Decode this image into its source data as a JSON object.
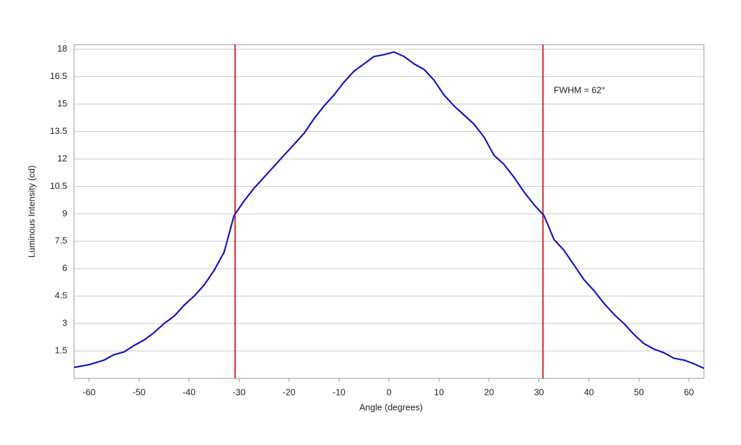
{
  "chart_data": {
    "type": "line",
    "xlabel": "Angle (degrees)",
    "ylabel": "Luminous Intensity (cd)",
    "annotation": "FWHM = 62°",
    "x": [
      -63,
      -60,
      -57,
      -55,
      -53,
      -51,
      -49,
      -47,
      -45,
      -43,
      -41,
      -39,
      -37,
      -35,
      -33,
      -31,
      -29,
      -27,
      -25,
      -23,
      -21,
      -19,
      -17,
      -15,
      -13,
      -11,
      -9,
      -7,
      -5,
      -3,
      -1,
      1,
      3,
      5,
      7,
      9,
      11,
      13,
      15,
      17,
      19,
      21,
      23,
      25,
      27,
      29,
      31,
      33,
      35,
      37,
      39,
      41,
      43,
      45,
      47,
      49,
      51,
      53,
      55,
      57,
      59,
      61,
      63
    ],
    "series": [
      {
        "color": "#1010c8",
        "values": [
          0.6,
          0.75,
          1.0,
          1.3,
          1.45,
          1.8,
          2.1,
          2.5,
          3.0,
          3.4,
          4.0,
          4.5,
          5.1,
          5.9,
          6.9,
          8.9,
          9.7,
          10.4,
          11.0,
          11.6,
          12.2,
          12.8,
          13.4,
          14.2,
          14.9,
          15.5,
          16.2,
          16.8,
          17.2,
          17.6,
          17.7,
          17.85,
          17.6,
          17.2,
          16.9,
          16.3,
          15.5,
          14.9,
          14.4,
          13.9,
          13.2,
          12.2,
          11.7,
          11.0,
          10.2,
          9.5,
          8.9,
          7.6,
          7.0,
          6.2,
          5.4,
          4.8,
          4.1,
          3.5,
          3.0,
          2.4,
          1.9,
          1.6,
          1.4,
          1.1,
          1.0,
          0.8,
          0.55
        ]
      }
    ],
    "vlines": [
      -30.8,
      30.8
    ],
    "vline_color": "#d42020",
    "xlim": [
      -63,
      63
    ],
    "xticks": [
      -60,
      -50,
      -40,
      -30,
      -20,
      -10,
      0,
      10,
      20,
      30,
      40,
      50,
      60
    ],
    "ylim": [
      0,
      18.25
    ],
    "yticks": [
      1.5,
      3,
      4.5,
      6,
      7.5,
      9,
      10.5,
      12,
      13.5,
      15,
      16.5,
      18
    ],
    "grid": true
  }
}
